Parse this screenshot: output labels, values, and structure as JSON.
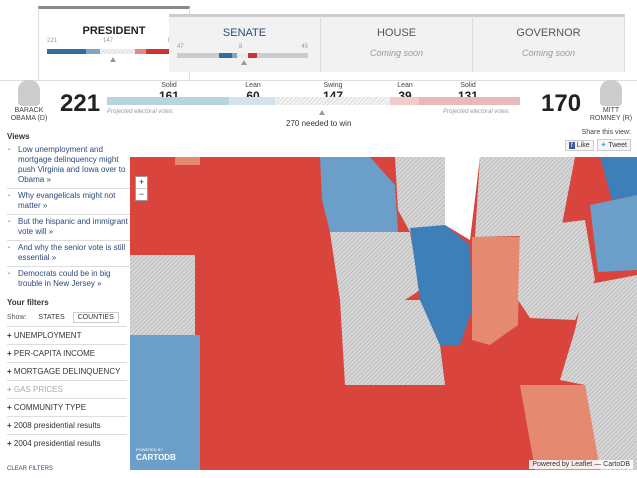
{
  "tabs": [
    {
      "label": "PRESIDENT",
      "left": "221",
      "mid": "147",
      "right": "170"
    },
    {
      "label": "SENATE",
      "left": "47",
      "mid": "8",
      "right": "45"
    },
    {
      "label": "HOUSE",
      "status": "Coming soon"
    },
    {
      "label": "GOVERNOR",
      "status": "Coming soon"
    }
  ],
  "candidates": {
    "dem": {
      "name_line1": "BARACK",
      "name_line2": "OBAMA (D)",
      "votes": "221"
    },
    "rep": {
      "name_line1": "MITT",
      "name_line2": "ROMNEY (R)",
      "votes": "170"
    }
  },
  "segments": [
    {
      "label": "Solid",
      "value": "161",
      "color": "#b8d4e0"
    },
    {
      "label": "Lean",
      "value": "60",
      "color": "#d4e2ec"
    },
    {
      "label": "Swing",
      "value": "147"
    },
    {
      "label": "Lean",
      "value": "39",
      "color": "#f0cccc"
    },
    {
      "label": "Solid",
      "value": "131",
      "color": "#e8b8bb"
    }
  ],
  "projected_label": "Projected electoral votes",
  "needed": "270 needed to win",
  "views": {
    "heading": "Views",
    "items": [
      "Low unemployment and mortgage delinquency might push Virginia and Iowa over to Obama »",
      "Why evangelicals might not matter »",
      "But the hispanic and immigrant vote will »",
      "And why the senior vote is still essential »",
      "Democrats could be in big trouble in New Jersey »"
    ]
  },
  "filters": {
    "heading": "Your filters",
    "show_label": "Show:",
    "show_options": [
      "STATES",
      "COUNTIES"
    ],
    "selected": "COUNTIES",
    "items": [
      "UNEMPLOYMENT",
      "PER-CAPITA INCOME",
      "MORTGAGE DELINQUENCY",
      "GAS PRICES",
      "COMMUNITY TYPE",
      "2008 presidential results",
      "2004 presidential results"
    ],
    "disabled": [
      "GAS PRICES"
    ],
    "clear": "CLEAR FILTERS"
  },
  "share": {
    "label": "Share this view:",
    "like": "Like",
    "tweet": "Tweet"
  },
  "map": {
    "zoom_in": "+",
    "zoom_out": "−",
    "attribution": "Powered by Leaflet — CartoDB",
    "logo_small": "POWERED BY",
    "logo": "CARTODB",
    "colors": {
      "solid_dem": "#3d7fb8",
      "lean_dem": "#6b9ec8",
      "solid_rep": "#d9453d",
      "lean_rep": "#e58a70",
      "swing": "#c8c8c8"
    }
  }
}
